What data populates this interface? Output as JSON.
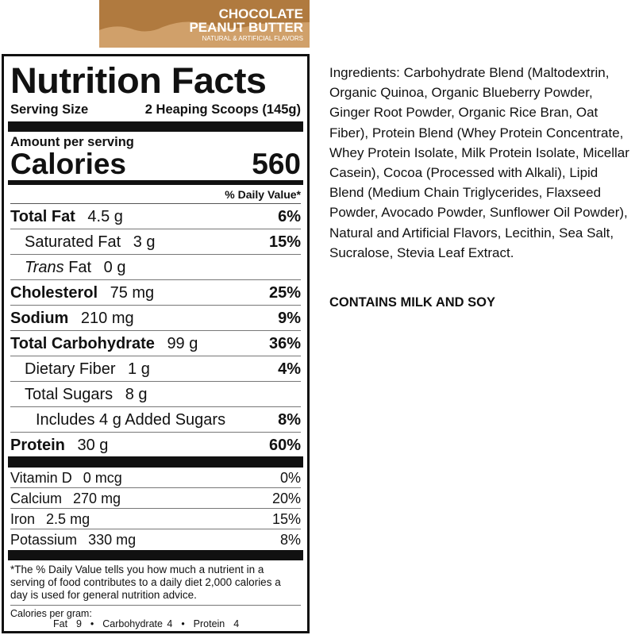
{
  "banner": {
    "line1": "CHOCOLATE",
    "line2": "PEANUT BUTTER",
    "line3": "NATURAL & ARTIFICIAL FLAVORS",
    "color": "#b07a3f"
  },
  "label": {
    "title": "Nutrition Facts",
    "serving_size_label": "Serving Size",
    "serving_size_value": "2 Heaping Scoops (145g)",
    "amount_per_serving": "Amount per serving",
    "calories_label": "Calories",
    "calories_value": "560",
    "dv_header": "% Daily Value*",
    "nutrients": [
      {
        "name": "Total Fat",
        "amount": "4.5 g",
        "dv": "6%",
        "bold": true,
        "indent": 0
      },
      {
        "name": "Saturated Fat",
        "amount": "3 g",
        "dv": "15%",
        "bold": false,
        "indent": 1
      },
      {
        "name": "Trans Fat",
        "amount": "0 g",
        "dv": "",
        "bold": false,
        "indent": 1,
        "italic_prefix": "Trans"
      },
      {
        "name": "Cholesterol",
        "amount": "75 mg",
        "dv": "25%",
        "bold": true,
        "indent": 0
      },
      {
        "name": "Sodium",
        "amount": "210 mg",
        "dv": "9%",
        "bold": true,
        "indent": 0
      },
      {
        "name": "Total Carbohydrate",
        "amount": "99 g",
        "dv": "36%",
        "bold": true,
        "indent": 0
      },
      {
        "name": "Dietary Fiber",
        "amount": "1 g",
        "dv": "4%",
        "bold": false,
        "indent": 1
      },
      {
        "name": "Total Sugars",
        "amount": "8 g",
        "dv": "",
        "bold": false,
        "indent": 1
      },
      {
        "name": "Includes 4 g Added Sugars",
        "amount": "",
        "dv": "8%",
        "bold": false,
        "indent": 2
      },
      {
        "name": "Protein",
        "amount": "30 g",
        "dv": "60%",
        "bold": true,
        "indent": 0
      }
    ],
    "vitamins": [
      {
        "name": "Vitamin D",
        "amount": "0 mcg",
        "dv": "0%"
      },
      {
        "name": "Calcium",
        "amount": "270 mg",
        "dv": "20%"
      },
      {
        "name": "Iron",
        "amount": "2.5 mg",
        "dv": "15%"
      },
      {
        "name": "Potassium",
        "amount": "330 mg",
        "dv": "8%"
      }
    ],
    "footnote": "*The % Daily Value tells you how much a nutrient in a serving of food contributes to a daily diet 2,000 calories a day is used for general nutrition advice.",
    "calories_per_gram_label": "Calories per gram:",
    "calories_per_gram": "Fat  9  •  Carbohydrate 4  •  Protein  4"
  },
  "ingredients": {
    "label": "Ingredients:",
    "text": " Carbohydrate Blend (Maltodextrin, Organic Quinoa, Organic Blueberry Powder, Ginger Root Powder, Organic Rice Bran, Oat Fiber), Protein Blend (Whey Protein Concentrate, Whey Protein Isolate, Milk Protein Isolate, Micellar Casein), Cocoa (Processed with Alkali), Lipid Blend (Medium Chain Triglycerides, Flaxseed Powder, Avocado Powder, Sunflower Oil Powder), Natural and Artificial Flavors, Lecithin, Sea Salt, Sucralose, Stevia Leaf Extract."
  },
  "allergen": "CONTAINS MILK AND SOY"
}
